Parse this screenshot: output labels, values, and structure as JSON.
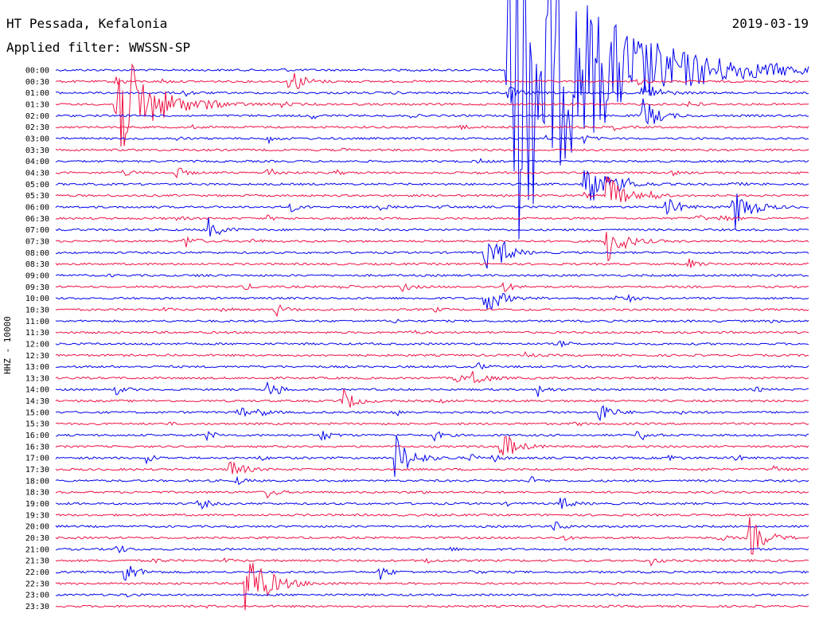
{
  "header": {
    "station": "HT Pessada, Kefalonia",
    "date": "2019-03-19",
    "filter": "Applied filter: WWSSN-SP",
    "channel": "HHZ - 10000"
  },
  "colors": {
    "even": "#0000ee",
    "odd": "#ee1144"
  },
  "chart_data": {
    "type": "line",
    "title": "HT Pessada, Kefalonia",
    "subtitle": "Applied filter: WWSSN-SP",
    "date": "2019-03-19",
    "ylabel": "HHZ - 10000",
    "xlabel": "",
    "row_labels": [
      "00:00",
      "00:30",
      "01:00",
      "01:30",
      "02:00",
      "02:30",
      "03:00",
      "03:30",
      "04:00",
      "04:30",
      "05:00",
      "05:30",
      "06:00",
      "06:30",
      "07:00",
      "07:30",
      "08:00",
      "08:30",
      "09:00",
      "09:30",
      "10:00",
      "10:30",
      "11:00",
      "11:30",
      "12:00",
      "12:30",
      "13:00",
      "13:30",
      "14:00",
      "14:30",
      "15:00",
      "15:30",
      "16:00",
      "16:30",
      "17:00",
      "17:30",
      "18:00",
      "18:30",
      "19:00",
      "19:30",
      "20:00",
      "20:30",
      "21:00",
      "21:30",
      "22:00",
      "22:30",
      "23:00",
      "23:30"
    ],
    "events": [
      [
        0,
        0.3,
        0.3
      ],
      [
        0,
        0.48,
        0.15
      ],
      [
        0,
        0.6,
        35
      ],
      [
        0,
        0.95,
        0.2
      ],
      [
        1,
        0.08,
        0.8
      ],
      [
        1,
        0.14,
        0.5
      ],
      [
        1,
        0.31,
        3
      ],
      [
        1,
        0.77,
        0.8
      ],
      [
        2,
        0.17,
        0.8
      ],
      [
        2,
        0.45,
        0.2
      ],
      [
        2,
        0.6,
        1.5
      ],
      [
        2,
        0.78,
        3
      ],
      [
        3,
        0.08,
        12
      ],
      [
        3,
        0.2,
        0.6
      ],
      [
        3,
        0.3,
        0.5
      ],
      [
        3,
        0.84,
        1.0
      ],
      [
        4,
        0.34,
        0.6
      ],
      [
        4,
        0.47,
        0.3
      ],
      [
        4,
        0.78,
        3.5
      ],
      [
        5,
        0.18,
        0.3
      ],
      [
        5,
        0.53,
        0.9
      ],
      [
        5,
        0.74,
        0.6
      ],
      [
        6,
        0.16,
        0.4
      ],
      [
        6,
        0.28,
        0.9
      ],
      [
        6,
        0.65,
        0.5
      ],
      [
        6,
        0.7,
        0.9
      ],
      [
        7,
        0.38,
        0.2
      ],
      [
        8,
        0.56,
        0.5
      ],
      [
        9,
        0.09,
        0.8
      ],
      [
        9,
        0.16,
        1.2
      ],
      [
        9,
        0.28,
        1.3
      ],
      [
        9,
        0.37,
        0.6
      ],
      [
        9,
        0.56,
        0.2
      ],
      [
        9,
        0.82,
        0.4
      ],
      [
        10,
        0.7,
        6
      ],
      [
        10,
        0.75,
        1.5
      ],
      [
        10,
        0.9,
        0.5
      ],
      [
        11,
        0.7,
        0.5
      ],
      [
        11,
        0.79,
        0.8
      ],
      [
        11,
        0.73,
        4.5
      ],
      [
        12,
        0.31,
        1.0
      ],
      [
        12,
        0.43,
        0.6
      ],
      [
        12,
        0.51,
        0.5
      ],
      [
        12,
        0.81,
        2.5
      ],
      [
        12,
        0.9,
        4.5
      ],
      [
        13,
        0.16,
        0.5
      ],
      [
        13,
        0.28,
        0.5
      ],
      [
        13,
        0.85,
        0.8
      ],
      [
        13,
        0.88,
        1.0
      ],
      [
        14,
        0.2,
        2.5
      ],
      [
        15,
        0.17,
        1.5
      ],
      [
        15,
        0.26,
        0.5
      ],
      [
        15,
        0.73,
        4.5
      ],
      [
        16,
        0.57,
        3.5
      ],
      [
        16,
        0.59,
        2
      ],
      [
        17,
        0.84,
        1.0
      ],
      [
        18,
        0.07,
        0.2
      ],
      [
        18,
        0.19,
        0.3
      ],
      [
        19,
        0.25,
        0.8
      ],
      [
        19,
        0.38,
        0.6
      ],
      [
        19,
        0.46,
        1.0
      ],
      [
        19,
        0.59,
        1.5
      ],
      [
        20,
        0.57,
        3.5
      ],
      [
        20,
        0.74,
        0.7
      ],
      [
        20,
        0.76,
        0.7
      ],
      [
        21,
        0.14,
        0.5
      ],
      [
        21,
        0.22,
        0.5
      ],
      [
        21,
        0.29,
        1.5
      ],
      [
        21,
        0.5,
        0.6
      ],
      [
        22,
        0.45,
        0.4
      ],
      [
        22,
        0.95,
        0.3
      ],
      [
        23,
        0.47,
        0.6
      ],
      [
        24,
        0.12,
        0.2
      ],
      [
        24,
        0.67,
        0.6
      ],
      [
        25,
        0.15,
        0.2
      ],
      [
        25,
        0.62,
        0.8
      ],
      [
        26,
        0.14,
        0.2
      ],
      [
        26,
        0.56,
        0.8
      ],
      [
        27,
        0.53,
        0.9
      ],
      [
        27,
        0.55,
        2.5
      ],
      [
        28,
        0.08,
        0.9
      ],
      [
        28,
        0.28,
        1.5
      ],
      [
        28,
        0.29,
        0.8
      ],
      [
        28,
        0.64,
        1.2
      ],
      [
        28,
        0.93,
        0.4
      ],
      [
        29,
        0.38,
        2.5
      ],
      [
        29,
        0.51,
        0.3
      ],
      [
        30,
        0.24,
        1.5
      ],
      [
        30,
        0.27,
        1.0
      ],
      [
        30,
        0.45,
        0.9
      ],
      [
        30,
        0.72,
        2.5
      ],
      [
        30,
        0.83,
        0.5
      ],
      [
        31,
        0.15,
        0.2
      ],
      [
        31,
        0.69,
        0.5
      ],
      [
        32,
        0.2,
        1.0
      ],
      [
        32,
        0.35,
        1.5
      ],
      [
        32,
        0.5,
        1.2
      ],
      [
        32,
        0.77,
        0.6
      ],
      [
        32,
        0.78,
        0.6
      ],
      [
        33,
        0.59,
        3.5
      ],
      [
        34,
        0.12,
        1.0
      ],
      [
        34,
        0.27,
        0.5
      ],
      [
        34,
        0.45,
        4.5
      ],
      [
        34,
        0.55,
        0.8
      ],
      [
        34,
        0.58,
        0.8
      ],
      [
        34,
        0.81,
        1.0
      ],
      [
        34,
        0.9,
        0.8
      ],
      [
        35,
        0.23,
        2.5
      ],
      [
        35,
        0.86,
        0.4
      ],
      [
        35,
        0.95,
        1.0
      ],
      [
        36,
        0.24,
        0.8
      ],
      [
        36,
        0.63,
        0.8
      ],
      [
        37,
        0.28,
        1.2
      ],
      [
        37,
        0.48,
        0.3
      ],
      [
        38,
        0.19,
        1.3
      ],
      [
        38,
        0.6,
        0.3
      ],
      [
        38,
        0.67,
        1.5
      ],
      [
        40,
        0.66,
        1.2
      ],
      [
        41,
        0.67,
        0.7
      ],
      [
        41,
        0.88,
        0.8
      ],
      [
        41,
        0.92,
        4
      ],
      [
        42,
        0.08,
        1.0
      ],
      [
        42,
        0.52,
        0.5
      ],
      [
        43,
        0.13,
        0.6
      ],
      [
        43,
        0.22,
        0.6
      ],
      [
        43,
        0.49,
        0.6
      ],
      [
        43,
        0.79,
        0.8
      ],
      [
        44,
        0.09,
        2.5
      ],
      [
        44,
        0.43,
        1.5
      ],
      [
        44,
        0.55,
        0.5
      ],
      [
        45,
        0.25,
        7
      ],
      [
        46,
        0.09,
        0.6
      ],
      [
        47,
        0.2,
        0.2
      ]
    ]
  }
}
